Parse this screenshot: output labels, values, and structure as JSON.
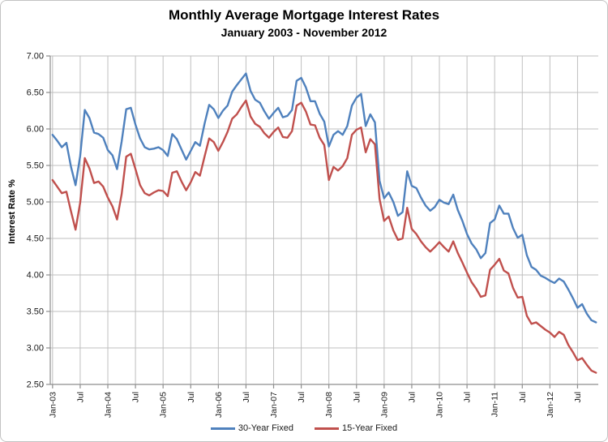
{
  "chart_data": {
    "type": "line",
    "title": "Monthly Average Mortgage Interest Rates",
    "subtitle": "January 2003 - November 2012",
    "xlabel": "",
    "ylabel": "Interest Rate %",
    "ylim": [
      2.5,
      7.0
    ],
    "ytick_step": 0.5,
    "y_tick_labels": [
      "7.00",
      "6.50",
      "6.00",
      "5.50",
      "5.00",
      "4.50",
      "4.00",
      "3.50",
      "3.00",
      "2.50"
    ],
    "x_tick_indices": [
      0,
      6,
      12,
      18,
      24,
      30,
      36,
      42,
      48,
      54,
      60,
      66,
      72,
      78,
      84,
      90,
      96,
      102,
      108,
      114
    ],
    "x_tick_labels": [
      "Jan-03",
      "Jul",
      "Jan-04",
      "Jul",
      "Jan-05",
      "Jul",
      "Jan-06",
      "Jul",
      "Jan-07",
      "Jul",
      "Jan-08",
      "Jul",
      "Jan-09",
      "Jul",
      "Jan-10",
      "Jul",
      "Jan-11",
      "Jul",
      "Jan-12",
      "Jul"
    ],
    "grid": true,
    "legend_position": "bottom",
    "colors": {
      "gridline": "#bfbfbf",
      "axis": "#8e8e8e",
      "tick_text": "#1a1a1a"
    },
    "categories": [
      "Jan-03",
      "Feb-03",
      "Mar-03",
      "Apr-03",
      "May-03",
      "Jun-03",
      "Jul-03",
      "Aug-03",
      "Sep-03",
      "Oct-03",
      "Nov-03",
      "Dec-03",
      "Jan-04",
      "Feb-04",
      "Mar-04",
      "Apr-04",
      "May-04",
      "Jun-04",
      "Jul-04",
      "Aug-04",
      "Sep-04",
      "Oct-04",
      "Nov-04",
      "Dec-04",
      "Jan-05",
      "Feb-05",
      "Mar-05",
      "Apr-05",
      "May-05",
      "Jun-05",
      "Jul-05",
      "Aug-05",
      "Sep-05",
      "Oct-05",
      "Nov-05",
      "Dec-05",
      "Jan-06",
      "Feb-06",
      "Mar-06",
      "Apr-06",
      "May-06",
      "Jun-06",
      "Jul-06",
      "Aug-06",
      "Sep-06",
      "Oct-06",
      "Nov-06",
      "Dec-06",
      "Jan-07",
      "Feb-07",
      "Mar-07",
      "Apr-07",
      "May-07",
      "Jun-07",
      "Jul-07",
      "Aug-07",
      "Sep-07",
      "Oct-07",
      "Nov-07",
      "Dec-07",
      "Jan-08",
      "Feb-08",
      "Mar-08",
      "Apr-08",
      "May-08",
      "Jun-08",
      "Jul-08",
      "Aug-08",
      "Sep-08",
      "Oct-08",
      "Nov-08",
      "Dec-08",
      "Jan-09",
      "Feb-09",
      "Mar-09",
      "Apr-09",
      "May-09",
      "Jun-09",
      "Jul-09",
      "Aug-09",
      "Sep-09",
      "Oct-09",
      "Nov-09",
      "Dec-09",
      "Jan-10",
      "Feb-10",
      "Mar-10",
      "Apr-10",
      "May-10",
      "Jun-10",
      "Jul-10",
      "Aug-10",
      "Sep-10",
      "Oct-10",
      "Nov-10",
      "Dec-10",
      "Jan-11",
      "Feb-11",
      "Mar-11",
      "Apr-11",
      "May-11",
      "Jun-11",
      "Jul-11",
      "Aug-11",
      "Sep-11",
      "Oct-11",
      "Nov-11",
      "Dec-11",
      "Jan-12",
      "Feb-12",
      "Mar-12",
      "Apr-12",
      "May-12",
      "Jun-12",
      "Jul-12",
      "Aug-12",
      "Sep-12",
      "Oct-12",
      "Nov-12"
    ],
    "series": [
      {
        "name": "30-Year Fixed",
        "color": "#4F81BD",
        "values": [
          5.92,
          5.84,
          5.75,
          5.81,
          5.48,
          5.23,
          5.63,
          6.26,
          6.15,
          5.95,
          5.93,
          5.88,
          5.71,
          5.64,
          5.45,
          5.83,
          6.27,
          6.29,
          6.06,
          5.87,
          5.75,
          5.72,
          5.73,
          5.75,
          5.71,
          5.63,
          5.93,
          5.86,
          5.72,
          5.58,
          5.7,
          5.82,
          5.77,
          6.07,
          6.33,
          6.27,
          6.15,
          6.25,
          6.32,
          6.51,
          6.6,
          6.68,
          6.76,
          6.52,
          6.4,
          6.36,
          6.24,
          6.14,
          6.22,
          6.29,
          6.16,
          6.18,
          6.26,
          6.66,
          6.7,
          6.57,
          6.38,
          6.38,
          6.21,
          6.1,
          5.76,
          5.92,
          5.97,
          5.92,
          6.04,
          6.32,
          6.43,
          6.48,
          6.04,
          6.2,
          6.09,
          5.29,
          5.05,
          5.13,
          5.0,
          4.81,
          4.86,
          5.42,
          5.22,
          5.19,
          5.06,
          4.95,
          4.88,
          4.93,
          5.03,
          4.99,
          4.97,
          5.1,
          4.89,
          4.74,
          4.56,
          4.43,
          4.35,
          4.23,
          4.3,
          4.71,
          4.76,
          4.95,
          4.84,
          4.84,
          4.64,
          4.51,
          4.55,
          4.27,
          4.11,
          4.07,
          3.99,
          3.96,
          3.92,
          3.89,
          3.95,
          3.91,
          3.8,
          3.68,
          3.55,
          3.6,
          3.47,
          3.38,
          3.35
        ]
      },
      {
        "name": "15-Year Fixed",
        "color": "#C0504D",
        "values": [
          5.3,
          5.21,
          5.12,
          5.14,
          4.87,
          4.62,
          4.99,
          5.6,
          5.46,
          5.26,
          5.28,
          5.21,
          5.06,
          4.94,
          4.76,
          5.11,
          5.62,
          5.66,
          5.45,
          5.23,
          5.12,
          5.09,
          5.13,
          5.16,
          5.15,
          5.08,
          5.4,
          5.42,
          5.28,
          5.16,
          5.27,
          5.41,
          5.36,
          5.62,
          5.87,
          5.82,
          5.7,
          5.82,
          5.96,
          6.14,
          6.2,
          6.3,
          6.39,
          6.17,
          6.07,
          6.03,
          5.94,
          5.88,
          5.96,
          6.02,
          5.89,
          5.88,
          5.97,
          6.32,
          6.36,
          6.24,
          6.06,
          6.05,
          5.88,
          5.78,
          5.3,
          5.48,
          5.43,
          5.49,
          5.6,
          5.92,
          5.99,
          6.02,
          5.68,
          5.86,
          5.79,
          5.04,
          4.74,
          4.8,
          4.61,
          4.48,
          4.5,
          4.92,
          4.63,
          4.56,
          4.46,
          4.38,
          4.32,
          4.38,
          4.45,
          4.38,
          4.32,
          4.46,
          4.3,
          4.17,
          4.03,
          3.9,
          3.81,
          3.7,
          3.72,
          4.07,
          4.14,
          4.22,
          4.06,
          4.02,
          3.82,
          3.69,
          3.7,
          3.44,
          3.33,
          3.35,
          3.3,
          3.25,
          3.21,
          3.15,
          3.22,
          3.18,
          3.04,
          2.94,
          2.83,
          2.86,
          2.77,
          2.69,
          2.66
        ]
      }
    ]
  }
}
